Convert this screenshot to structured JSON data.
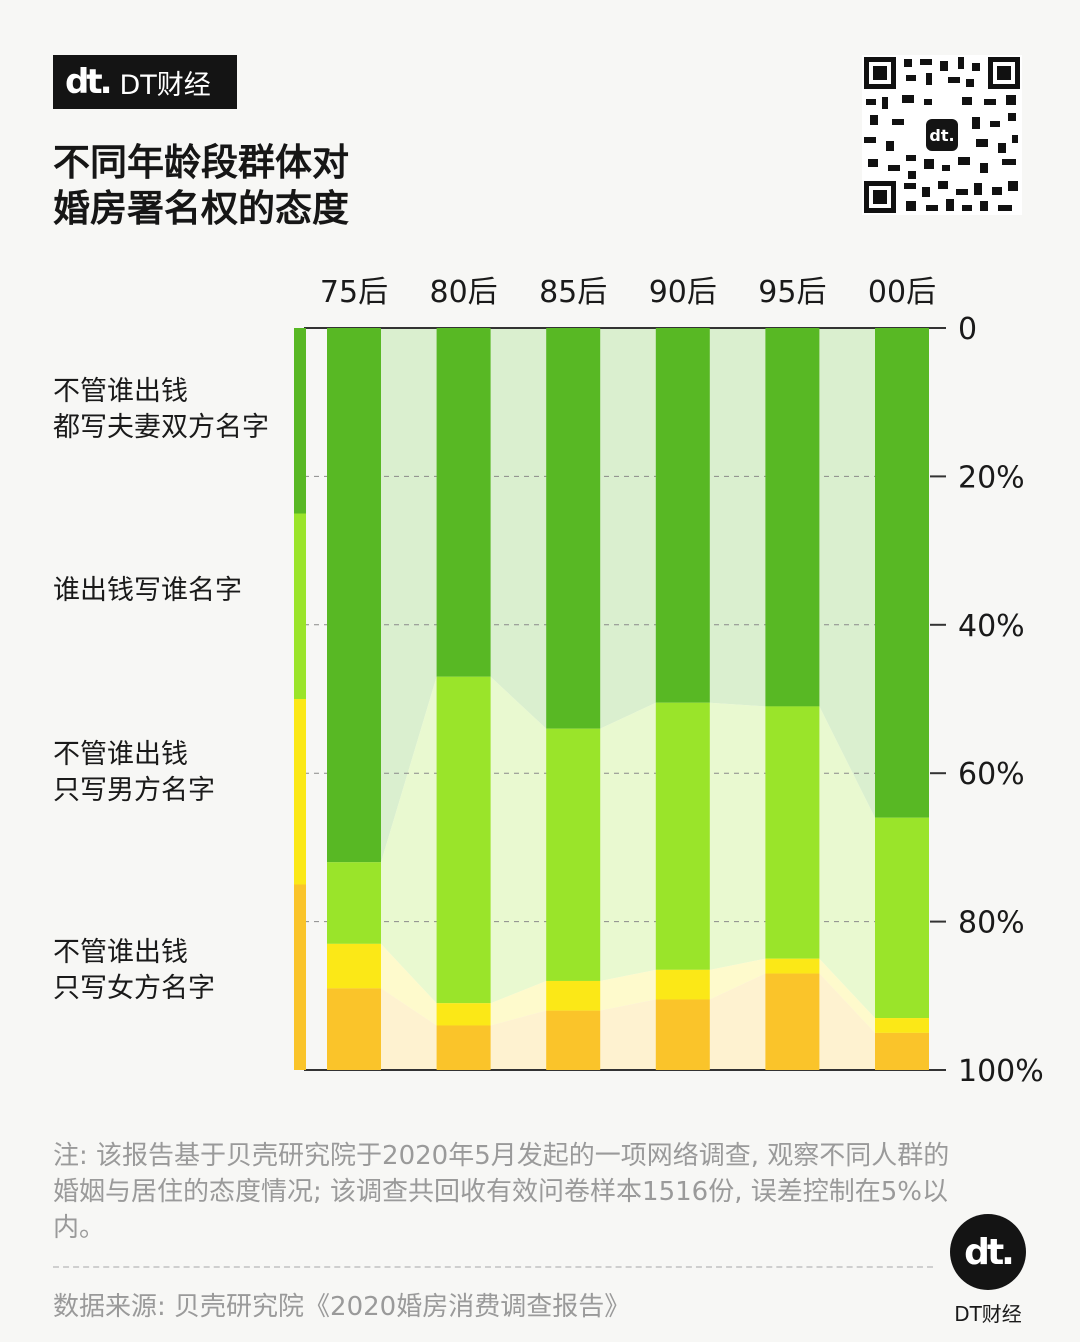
{
  "brand": {
    "mark": "dt.",
    "name": "DT财经"
  },
  "title_lines": [
    "不同年龄段群体对",
    "婚房署名权的态度"
  ],
  "chart_data": {
    "type": "bar",
    "stacked": true,
    "orientation": "vertical",
    "categories": [
      "75后",
      "80后",
      "85后",
      "90后",
      "95后",
      "00后"
    ],
    "series": [
      {
        "name": "不管谁出钱都写夫妻双方名字",
        "color": "#58b824",
        "values": [
          72.0,
          47.0,
          54.0,
          50.5,
          51.0,
          66.0
        ]
      },
      {
        "name": "谁出钱写谁名字",
        "color": "#9ae42a",
        "values": [
          11.0,
          44.0,
          34.0,
          36.0,
          34.0,
          27.0
        ]
      },
      {
        "name": "不管谁出钱只写男方名字",
        "color": "#fbe817",
        "values": [
          6.0,
          3.0,
          4.0,
          4.0,
          2.0,
          2.0
        ]
      },
      {
        "name": "不管谁出钱只写女方名字",
        "color": "#fac42a",
        "values": [
          11.0,
          6.0,
          8.0,
          9.5,
          13.0,
          5.0
        ]
      }
    ],
    "y_ticks": [
      "0",
      "20%",
      "40%",
      "60%",
      "80%",
      "100%"
    ],
    "ylim": [
      0,
      100
    ],
    "y_inverted": true,
    "y_axis_side": "right",
    "legend_placement": "left",
    "legend_labels": [
      [
        "不管谁出钱",
        "都写夫妻双方名字"
      ],
      [
        "谁出钱写谁名字"
      ],
      [
        "不管谁出钱",
        "只写男方名字"
      ],
      [
        "不管谁出钱",
        "只写女方名字"
      ]
    ],
    "legend_bar_values": [
      25,
      25,
      25,
      25
    ]
  },
  "note": "注: 该报告基于贝壳研究院于2020年5月发起的一项网络调查, 观察不同人群的婚姻与居住的态度情况; 该调查共回收有效问卷样本1516份, 误差控制在5%以内。",
  "source": "数据来源: 贝壳研究院《2020婚房消费调查报告》",
  "bottom_logo": {
    "mark": "dt.",
    "name": "DT财经"
  }
}
